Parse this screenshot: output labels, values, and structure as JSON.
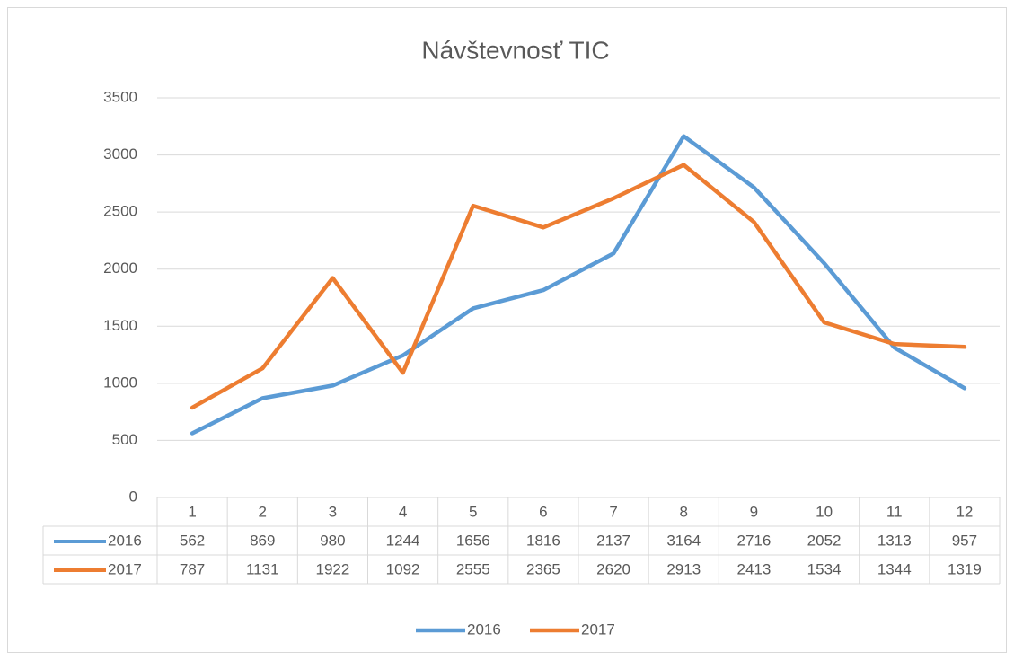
{
  "chart_data": {
    "type": "line",
    "title": "Návštevnosť TIC",
    "categories": [
      "1",
      "2",
      "3",
      "4",
      "5",
      "6",
      "7",
      "8",
      "9",
      "10",
      "11",
      "12"
    ],
    "series": [
      {
        "name": "2016",
        "color": "#5b9bd5",
        "values": [
          562,
          869,
          980,
          1244,
          1656,
          1816,
          2137,
          3164,
          2716,
          2052,
          1313,
          957
        ]
      },
      {
        "name": "2017",
        "color": "#ed7d31",
        "values": [
          787,
          1131,
          1922,
          1092,
          2555,
          2365,
          2620,
          2913,
          2413,
          1534,
          1344,
          1319
        ]
      }
    ],
    "ylim": [
      0,
      3500
    ],
    "yticks": [
      0,
      500,
      1000,
      1500,
      2000,
      2500,
      3000,
      3500
    ],
    "grid": true,
    "legend": "bottom"
  }
}
